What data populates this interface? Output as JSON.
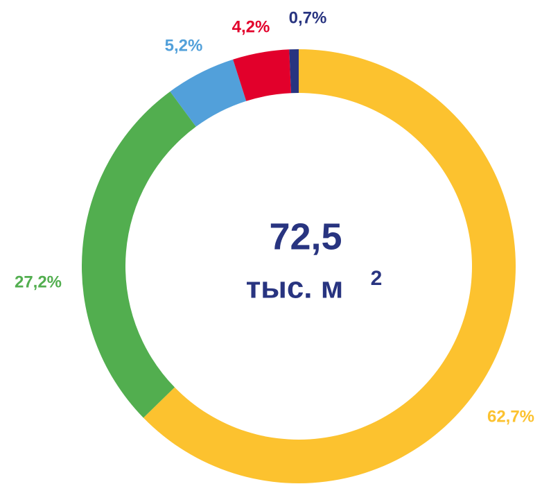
{
  "chart_data": {
    "type": "donut",
    "categories": [
      null,
      null,
      null,
      null,
      null
    ],
    "values": [
      62.7,
      27.2,
      5.2,
      4.2,
      0.7
    ],
    "value_labels": [
      "62,7%",
      "27,2%",
      "5,2%",
      "4,2%",
      "0,7%"
    ],
    "colors": [
      "#fcc22f",
      "#52ae4f",
      "#52a0da",
      "#e2002b",
      "#283480"
    ],
    "center_value": "72,5",
    "center_unit": "тыс. м",
    "center_unit_sup": "2"
  }
}
